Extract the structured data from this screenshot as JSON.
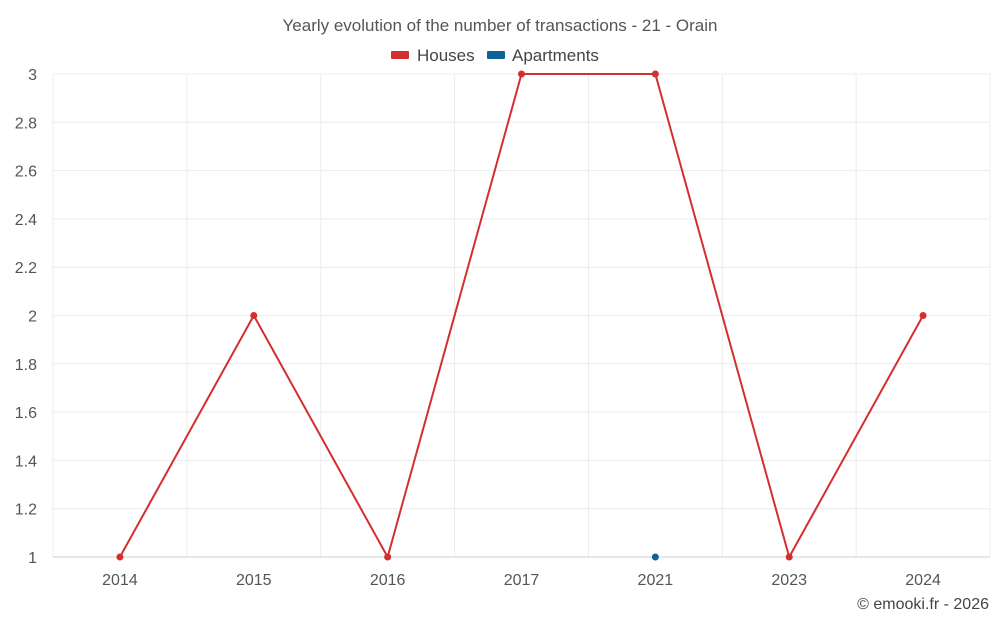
{
  "chart_data": {
    "type": "line",
    "title": "Yearly evolution of the number of transactions - 21 - Orain",
    "categories": [
      "2014",
      "2015",
      "2016",
      "2017",
      "2021",
      "2023",
      "2024"
    ],
    "series": [
      {
        "name": "Houses",
        "color": "#d32f2f",
        "values": [
          1,
          2,
          1,
          3,
          3,
          1,
          2
        ]
      },
      {
        "name": "Apartments",
        "color": "#0b6396",
        "values": [
          null,
          null,
          null,
          null,
          1,
          null,
          null
        ]
      }
    ],
    "ylim": [
      1,
      3
    ],
    "yticks": [
      "1",
      "1.2",
      "1.4",
      "1.6",
      "1.8",
      "2",
      "2.2",
      "2.4",
      "2.6",
      "2.8",
      "3"
    ],
    "grid": true,
    "legend_position": "top-center",
    "xlabel": "",
    "ylabel": ""
  },
  "credit": "© emooki.fr - 2026"
}
